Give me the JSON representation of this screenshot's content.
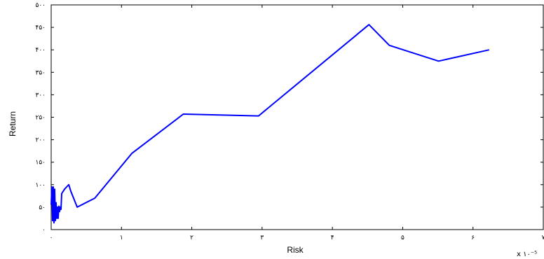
{
  "chart_data": {
    "type": "line",
    "title": "",
    "xlabel": "Risk",
    "ylabel": "Return",
    "x_exponent_label": "x ۱۰⁻⁵",
    "xlim": [
      0,
      7
    ],
    "ylim": [
      0,
      500
    ],
    "grid": false,
    "x_ticks": [
      0,
      1,
      2,
      3,
      4,
      5,
      6,
      7
    ],
    "x_tick_labels": [
      "۰",
      "۱",
      "۲",
      "۳",
      "۴",
      "۵",
      "۶",
      "۷"
    ],
    "y_ticks": [
      0,
      50,
      100,
      150,
      200,
      250,
      300,
      350,
      400,
      450,
      500
    ],
    "y_tick_labels": [
      "۰",
      "۵۰",
      "۱۰۰",
      "۱۵۰",
      "۲۰۰",
      "۲۵۰",
      "۳۰۰",
      "۳۵۰",
      "۴۰۰",
      "۴۵۰",
      "۵۰۰"
    ],
    "series": [
      {
        "color": "#0000ff",
        "x": [
          0.0,
          0.01,
          0.02,
          0.03,
          0.04,
          0.05,
          0.06,
          0.07,
          0.08,
          0.09,
          0.1,
          0.11,
          0.12,
          0.13,
          0.14,
          0.15,
          0.17,
          0.19,
          0.22,
          0.25,
          0.28,
          0.37,
          0.62,
          1.15,
          1.88,
          2.95,
          4.52,
          4.81,
          5.51,
          6.23
        ],
        "y": [
          55,
          95,
          20,
          95,
          15,
          90,
          20,
          60,
          25,
          50,
          25,
          52,
          40,
          50,
          45,
          80,
          85,
          90,
          95,
          100,
          85,
          50,
          70,
          170,
          257,
          253,
          456,
          410,
          375,
          400
        ]
      }
    ]
  }
}
